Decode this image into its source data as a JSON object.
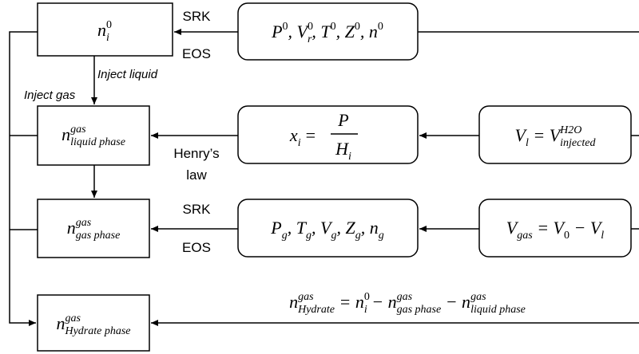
{
  "annotations": [
    "SRK",
    "EOS",
    "Inject liquid",
    "Inject gas",
    "Henry’s",
    "law",
    "SRK",
    "EOS"
  ],
  "boxes": [
    [
      "n",
      "0",
      "i"
    ],
    [
      "P",
      "0",
      ", V",
      "0",
      "r",
      ", T",
      "0",
      ", Z",
      "0",
      ", n",
      "0"
    ],
    [
      "n",
      "gas",
      "liquid phase"
    ],
    [
      "x",
      "i",
      "=",
      "P",
      "H",
      "i"
    ],
    [
      "V",
      "l",
      " = V",
      "H2O",
      "injected"
    ],
    [
      "n",
      "gas",
      "gas phase"
    ],
    [
      "P",
      "g",
      ", T",
      "g",
      ", V",
      "g",
      ", Z",
      "g",
      ", n",
      "g"
    ],
    [
      "V",
      "gas",
      " =  V",
      "0",
      " − V",
      "l"
    ],
    [
      "n",
      "gas",
      "Hydrate phase"
    ]
  ],
  "equation": [
    "n",
    "gas",
    "Hydrate",
    " = n",
    "0",
    "i",
    " − n",
    "gas",
    "gas phase",
    " − n",
    "gas",
    "liquid phase"
  ]
}
